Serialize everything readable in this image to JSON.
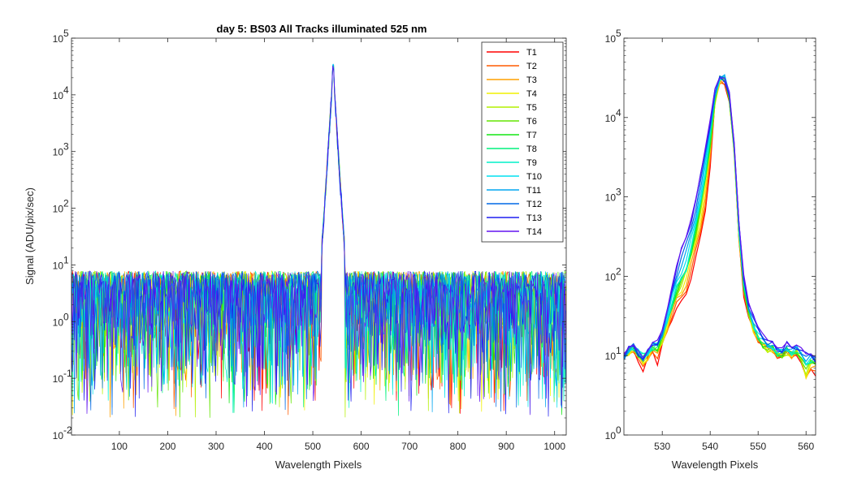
{
  "chart_data": [
    {
      "type": "line",
      "title": "day 5: BS03   All Tracks illuminated   525 nm",
      "xlabel": "Wavelength Pixels",
      "ylabel": "Signal (ADU/pix/sec)",
      "xlim": [
        1,
        1024
      ],
      "ylim": [
        0.01,
        100000
      ],
      "yscale": "log",
      "xticks": [
        "100",
        "200",
        "300",
        "400",
        "500",
        "600",
        "700",
        "800",
        "900",
        "1000"
      ],
      "yticks": [
        "10",
        "10",
        "10",
        "10",
        "10",
        "10",
        "10",
        "10"
      ],
      "ytick_exponents": [
        "-2",
        "-1",
        "0",
        "1",
        "2",
        "3",
        "4",
        "5"
      ],
      "legend_position": "top-right",
      "peak_pixel": 542,
      "peak_value": 30000,
      "noise_floor_level": 2,
      "noise_range": [
        0.02,
        8
      ],
      "series": [
        {
          "name": "T1",
          "color": "#ff0000"
        },
        {
          "name": "T2",
          "color": "#ff5a00"
        },
        {
          "name": "T3",
          "color": "#ffa000"
        },
        {
          "name": "T4",
          "color": "#f0f000"
        },
        {
          "name": "T5",
          "color": "#b4f000"
        },
        {
          "name": "T6",
          "color": "#64e600"
        },
        {
          "name": "T7",
          "color": "#14e614"
        },
        {
          "name": "T8",
          "color": "#00f07d"
        },
        {
          "name": "T9",
          "color": "#00f0c8"
        },
        {
          "name": "T10",
          "color": "#00e1f0"
        },
        {
          "name": "T11",
          "color": "#00a5f0"
        },
        {
          "name": "T12",
          "color": "#0069e6"
        },
        {
          "name": "T13",
          "color": "#1e1ef0"
        },
        {
          "name": "T14",
          "color": "#6414f0"
        }
      ]
    },
    {
      "type": "line",
      "title": "",
      "xlabel": "Wavelength Pixels",
      "ylabel": "",
      "xlim": [
        522,
        562
      ],
      "ylim": [
        1,
        100000
      ],
      "yscale": "log",
      "xticks": [
        "530",
        "540",
        "550",
        "560"
      ],
      "yticks": [
        "10",
        "10",
        "10",
        "10",
        "10",
        "10"
      ],
      "ytick_exponents": [
        "0",
        "1",
        "2",
        "3",
        "4",
        "5"
      ],
      "x": [
        522,
        523,
        524,
        525,
        526,
        527,
        528,
        529,
        530,
        531,
        532,
        533,
        534,
        535,
        536,
        537,
        538,
        539,
        540,
        541,
        542,
        543,
        544,
        545,
        546,
        547,
        548,
        549,
        550,
        551,
        552,
        553,
        554,
        555,
        556,
        557,
        558,
        559,
        560,
        561,
        562
      ],
      "series": [
        {
          "name": "T1",
          "values": [
            10,
            11,
            12,
            9,
            6,
            9,
            12,
            8,
            13,
            20,
            30,
            40,
            45,
            60,
            100,
            170,
            300,
            700,
            2500,
            15000,
            28000,
            28000,
            16000,
            3500,
            300,
            60,
            30,
            20,
            16,
            14,
            12,
            12,
            10,
            10,
            11,
            10,
            11,
            8,
            5,
            7,
            6
          ]
        },
        {
          "name": "T5",
          "values": [
            10,
            11,
            12,
            10,
            9,
            10,
            12,
            12,
            16,
            24,
            40,
            60,
            80,
            110,
            190,
            330,
            650,
            1500,
            4200,
            16000,
            30000,
            30000,
            17000,
            3800,
            330,
            70,
            35,
            22,
            16,
            13,
            12,
            12,
            10,
            10,
            11,
            10,
            11,
            9,
            6,
            8,
            8
          ]
        },
        {
          "name": "T9",
          "values": [
            9,
            12,
            13,
            11,
            10,
            11,
            13,
            13,
            18,
            28,
            45,
            70,
            95,
            130,
            220,
            420,
            900,
            2100,
            5800,
            18000,
            32000,
            33000,
            19000,
            4200,
            380,
            80,
            38,
            24,
            18,
            15,
            13,
            13,
            11,
            11,
            12,
            11,
            12,
            10,
            8,
            9,
            9
          ]
        },
        {
          "name": "T13",
          "values": [
            10,
            12,
            13,
            11,
            9,
            11,
            14,
            15,
            20,
            35,
            70,
            130,
            210,
            300,
            500,
            900,
            1800,
            4000,
            9000,
            22000,
            30000,
            30000,
            20000,
            4500,
            450,
            100,
            45,
            30,
            22,
            18,
            15,
            14,
            12,
            12,
            14,
            12,
            13,
            12,
            10,
            10,
            9
          ]
        }
      ]
    }
  ]
}
